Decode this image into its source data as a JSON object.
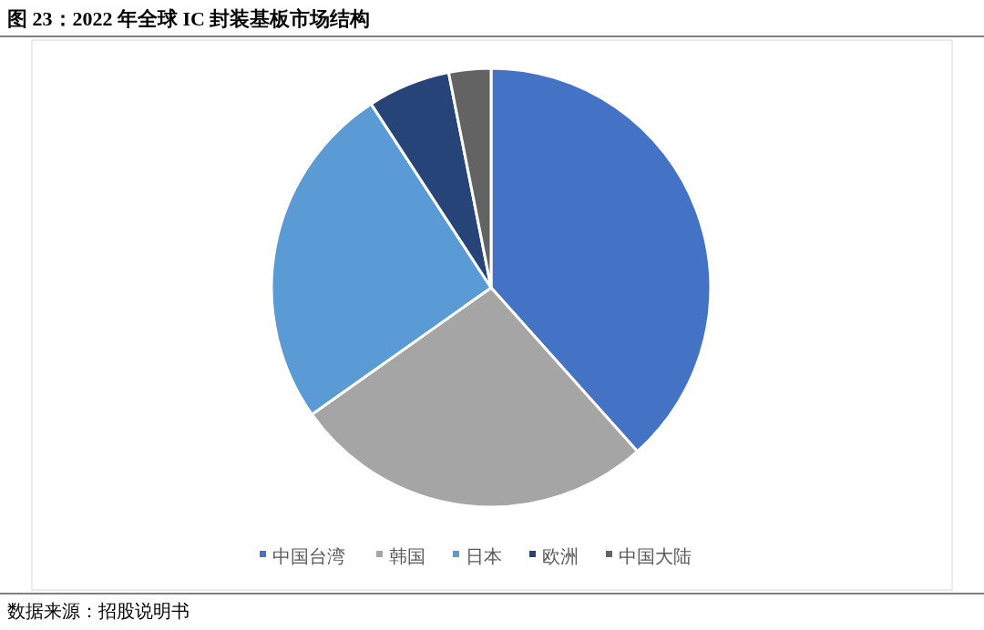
{
  "chart_data": {
    "type": "pie",
    "title": "图 23：2022 年全球 IC 封装基板市场结构",
    "categories": [
      "中国台湾",
      "韩国",
      "日本",
      "欧洲",
      "中国大陆"
    ],
    "values": [
      38.4,
      26.8,
      25.6,
      6.1,
      3.1
    ],
    "colors": [
      "#4472c4",
      "#a5a5a5",
      "#5b9bd5",
      "#264478",
      "#636363"
    ],
    "legend": "bottom",
    "annotations": [
      "数据来源：招股说明书"
    ]
  }
}
